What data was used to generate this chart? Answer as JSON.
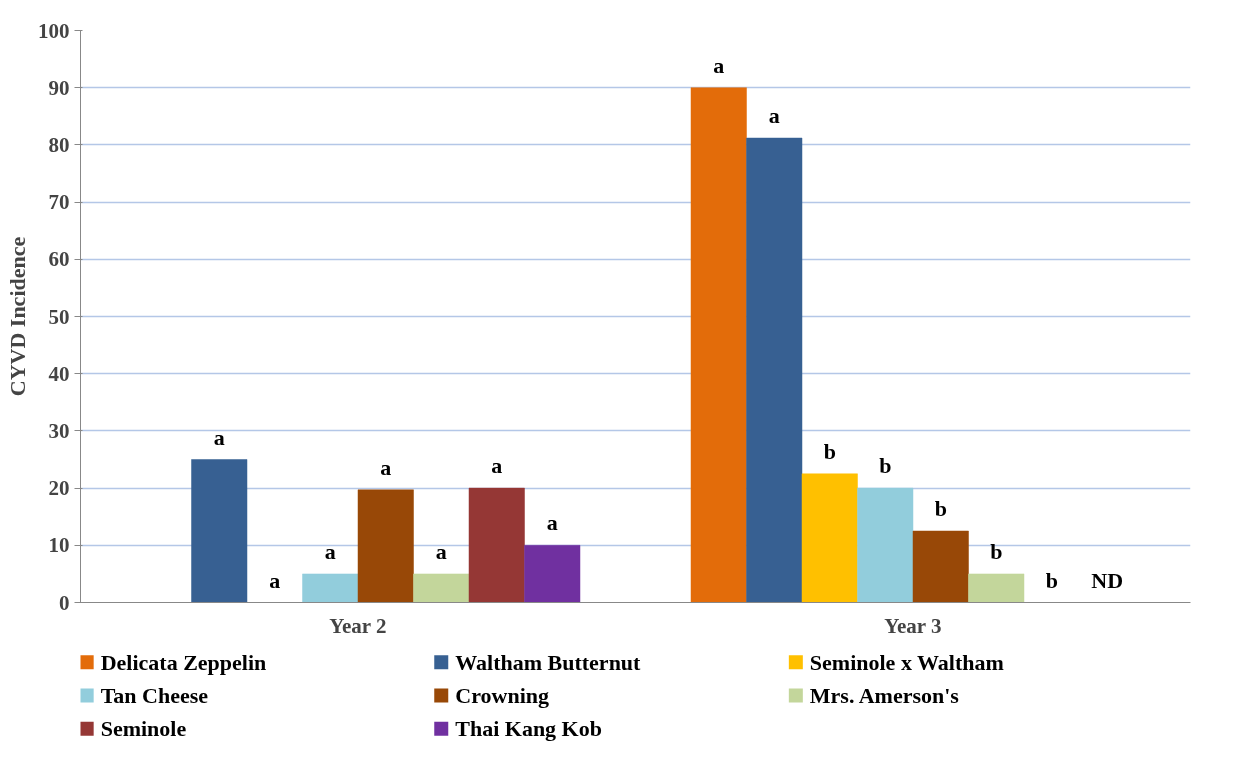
{
  "chart_data": {
    "type": "bar",
    "ylabel": "CYVD Incidence",
    "categories": [
      "Year 2",
      "Year 3"
    ],
    "ylim": [
      0,
      100
    ],
    "yticks": [
      0,
      10,
      20,
      30,
      40,
      50,
      60,
      70,
      80,
      90,
      100
    ],
    "grid": "y",
    "legend": "bottom",
    "series": [
      {
        "name": "Delicata Zeppelin",
        "color": "#e36c0a",
        "values": [
          null,
          90
        ],
        "value_labels": [
          null,
          "a"
        ]
      },
      {
        "name": "Waltham Butternut",
        "color": "#376092",
        "values": [
          25,
          81.2
        ],
        "value_labels": [
          "a",
          "a"
        ]
      },
      {
        "name": "Seminole x Waltham",
        "color": "#ffc000",
        "values": [
          0,
          22.5
        ],
        "value_labels": [
          "a",
          "b"
        ]
      },
      {
        "name": "Tan Cheese",
        "color": "#92cddc",
        "values": [
          5,
          20
        ],
        "value_labels": [
          "a",
          "b"
        ]
      },
      {
        "name": "Crowning",
        "color": "#984807",
        "values": [
          19.7,
          12.5
        ],
        "value_labels": [
          "a",
          "b"
        ]
      },
      {
        "name": "Mrs. Amerson's",
        "color": "#c3d69b",
        "values": [
          5,
          5
        ],
        "value_labels": [
          "a",
          "b"
        ]
      },
      {
        "name": "Seminole",
        "color": "#953735",
        "values": [
          20,
          0
        ],
        "value_labels": [
          "a",
          "b"
        ]
      },
      {
        "name": "Thai Kang Kob",
        "color": "#7030a0",
        "values": [
          10,
          null
        ],
        "value_labels": [
          "a",
          "ND"
        ]
      }
    ]
  }
}
